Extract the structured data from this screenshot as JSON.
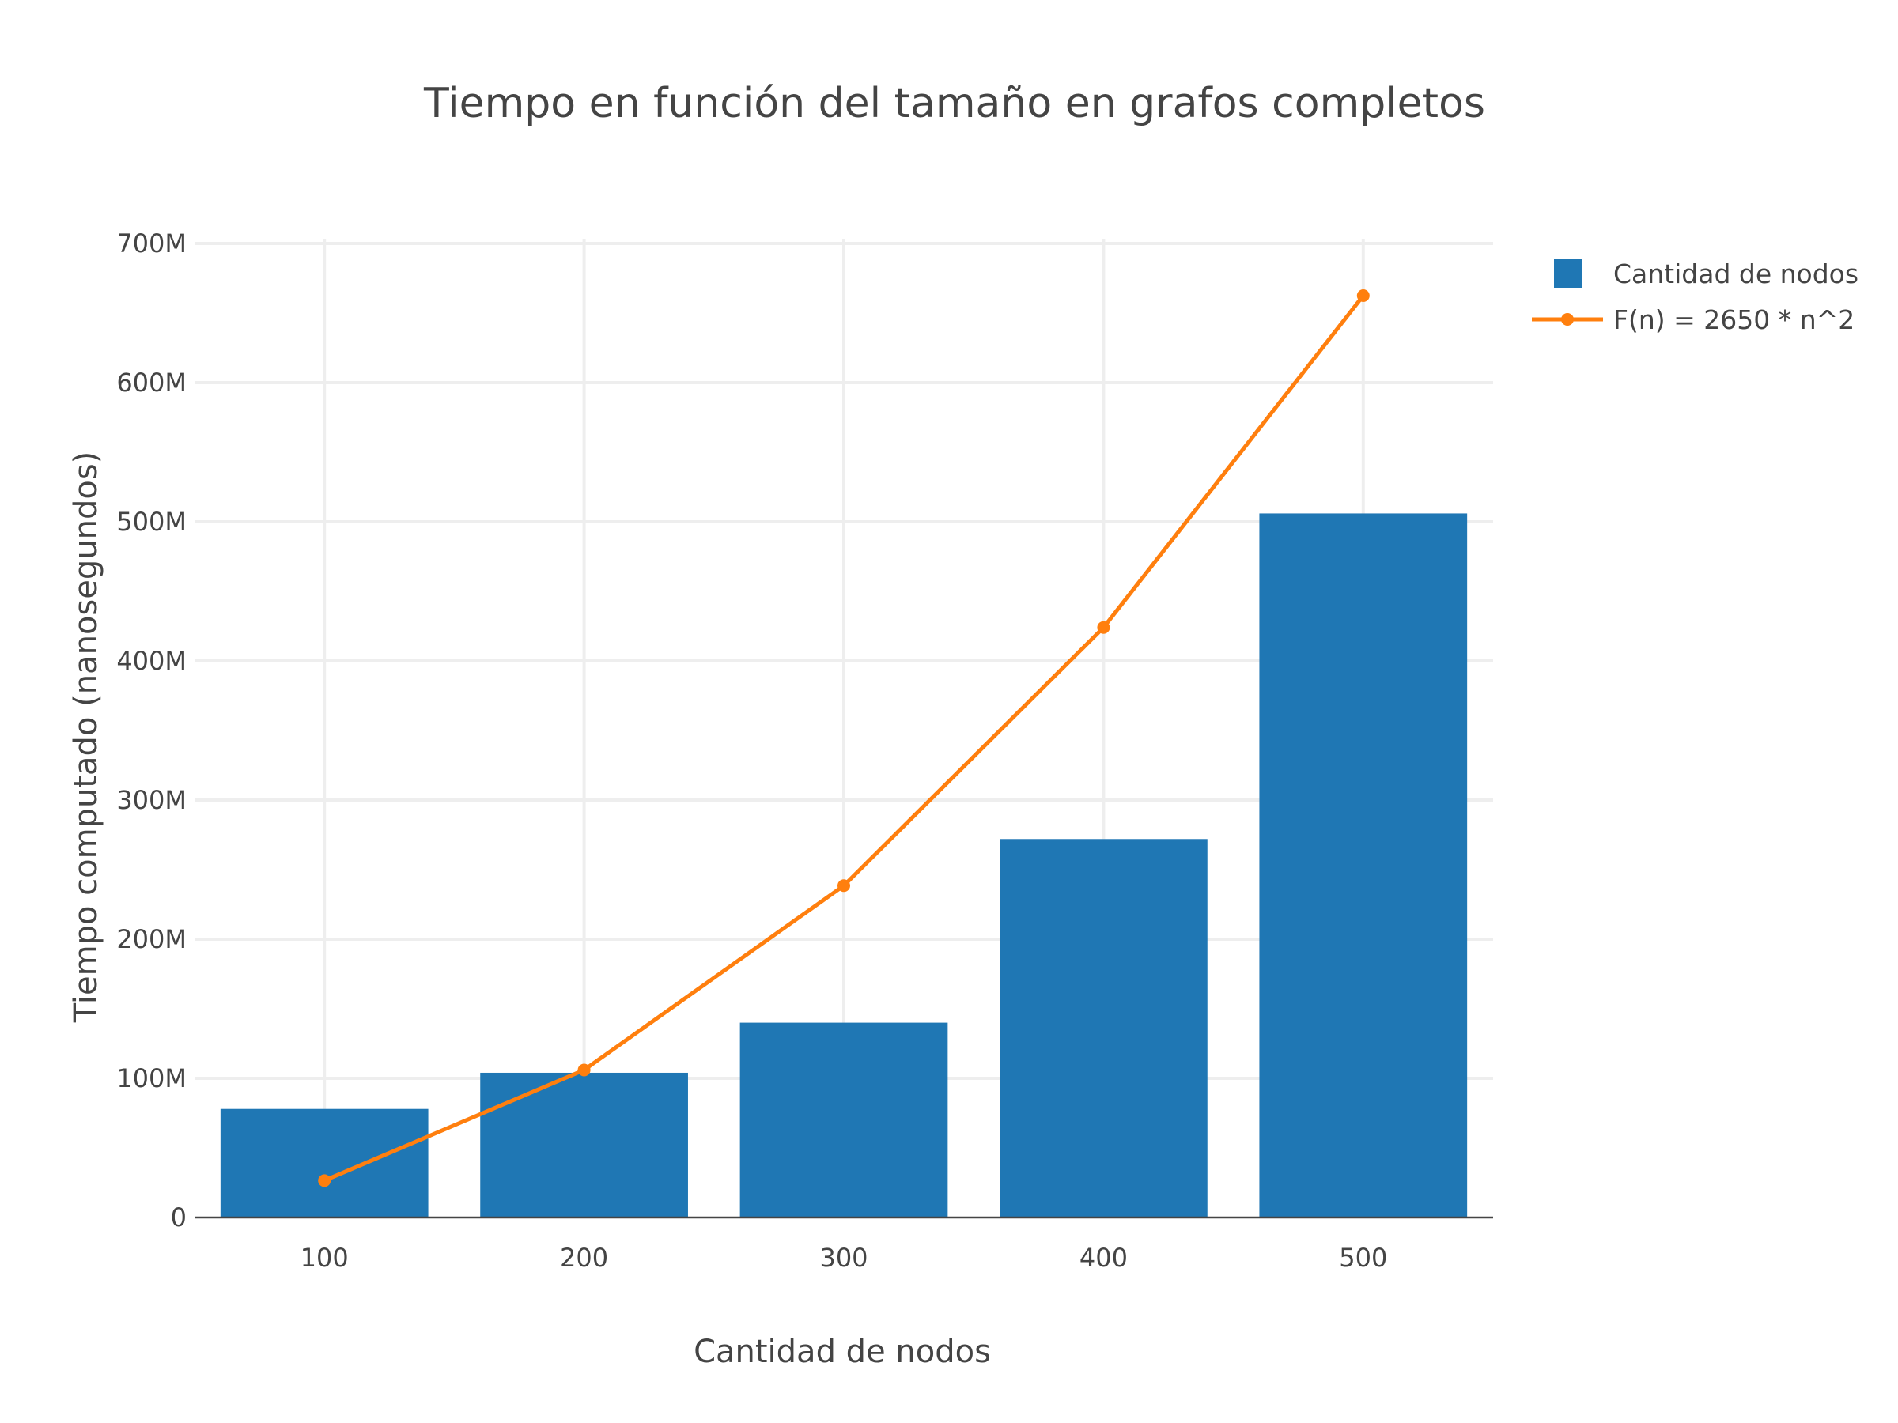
{
  "chart_data": {
    "type": "bar",
    "title": "Tiempo en función del tamaño en grafos completos",
    "xlabel": "Cantidad de nodos",
    "ylabel": "Tiempo computado (nanosegundos)",
    "categories": [
      "100",
      "200",
      "300",
      "400",
      "500"
    ],
    "x": [
      100,
      200,
      300,
      400,
      500
    ],
    "xlim": [
      50,
      550
    ],
    "ylim": [
      0,
      700000000
    ],
    "y_ticks": [
      0,
      100000000,
      200000000,
      300000000,
      400000000,
      500000000,
      600000000,
      700000000
    ],
    "y_tick_labels": [
      "0",
      "100M",
      "200M",
      "300M",
      "400M",
      "500M",
      "600M",
      "700M"
    ],
    "grid": true,
    "legend_position": "top-right",
    "series": [
      {
        "name": "Cantidad de nodos",
        "kind": "bar",
        "color": "#1f77b4",
        "values": [
          78000000,
          104000000,
          140000000,
          272000000,
          506000000
        ]
      },
      {
        "name": "F(n) = 2650 * n^2",
        "kind": "line",
        "color": "#ff7f0e",
        "values": [
          26500000,
          106000000,
          238500000,
          424000000,
          662500000
        ]
      }
    ]
  }
}
